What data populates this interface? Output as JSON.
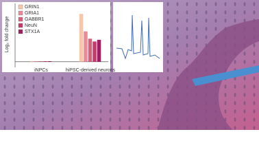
{
  "chart_data": {
    "type": "bar",
    "y_label": "Log₂ fold change",
    "categories": [
      "iNPCs",
      "hiPSC-derived neurons"
    ],
    "series": [
      {
        "name": "GRIN1",
        "color": "#f6c6ad",
        "values": [
          0.1,
          8.5
        ]
      },
      {
        "name": "GRIA1",
        "color": "#e88a98",
        "values": [
          0.1,
          5.4
        ]
      },
      {
        "name": "GABBR1",
        "color": "#d9607c",
        "values": [
          0.1,
          4.1
        ]
      },
      {
        "name": "NeuN",
        "color": "#c43a68",
        "values": [
          0.1,
          3.6
        ]
      },
      {
        "name": "STX1A",
        "color": "#9d2060",
        "values": [
          0.1,
          3.9
        ]
      }
    ],
    "ylim": [
      -1,
      10
    ]
  }
}
